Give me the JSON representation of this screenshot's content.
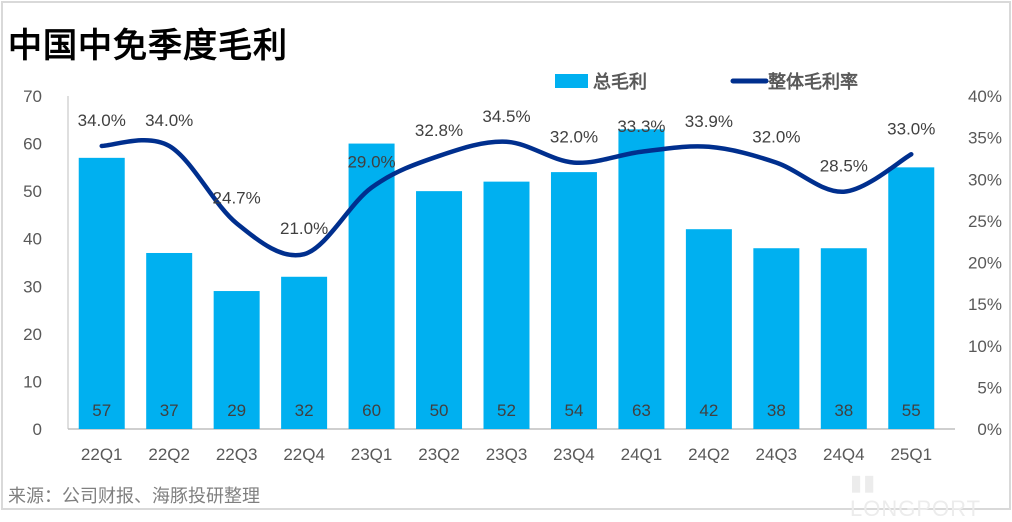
{
  "title": "中国中免季度毛利",
  "source": "来源：公司财报、海豚投研整理",
  "watermark": "LONGPORT",
  "colors": {
    "bar": "#00b0f0",
    "line": "#002f8e"
  },
  "chart_data": {
    "type": "bar+line",
    "title": "中国中免季度毛利",
    "categories": [
      "22Q1",
      "22Q2",
      "22Q3",
      "22Q4",
      "23Q1",
      "23Q2",
      "23Q3",
      "23Q4",
      "24Q1",
      "24Q2",
      "24Q3",
      "24Q4",
      "25Q1"
    ],
    "series": [
      {
        "name": "总毛利",
        "type": "bar",
        "axis": "left",
        "values": [
          57,
          37,
          29,
          32,
          60,
          50,
          52,
          54,
          63,
          42,
          38,
          38,
          55
        ],
        "labels": [
          "57",
          "37",
          "29",
          "32",
          "60",
          "50",
          "52",
          "54",
          "63",
          "42",
          "38",
          "38",
          "55"
        ]
      },
      {
        "name": "整体毛利率",
        "type": "line",
        "axis": "right",
        "values": [
          34.0,
          34.0,
          24.7,
          21.0,
          29.0,
          32.8,
          34.5,
          32.0,
          33.3,
          33.9,
          32.0,
          28.5,
          33.0
        ],
        "labels": [
          "34.0%",
          "34.0%",
          "24.7%",
          "21.0%",
          "29.0%",
          "32.8%",
          "34.5%",
          "32.0%",
          "33.3%",
          "33.9%",
          "32.0%",
          "28.5%",
          "33.0%"
        ]
      }
    ],
    "left_axis": {
      "ylim": [
        0,
        70
      ],
      "ticks": [
        "0",
        "10",
        "20",
        "30",
        "40",
        "50",
        "60",
        "70"
      ]
    },
    "right_axis": {
      "ylim": [
        0,
        40
      ],
      "ticks": [
        "0%",
        "5%",
        "10%",
        "15%",
        "20%",
        "25%",
        "30%",
        "35%",
        "40%"
      ]
    },
    "legend_position": "top-right",
    "grid": false
  }
}
